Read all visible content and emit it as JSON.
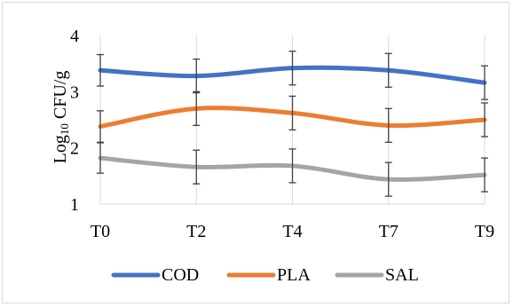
{
  "chart_data": {
    "type": "line",
    "title": "",
    "ylabel_main": "Log",
    "ylabel_sub": "10",
    "ylabel_rest": " CFU/g",
    "xlabel": "",
    "categories": [
      "T0",
      "T2",
      "T4",
      "T7",
      "T9"
    ],
    "ylim": [
      1,
      4
    ],
    "yticks": [
      "1",
      "2",
      "3",
      "4"
    ],
    "grid": "vertical",
    "legend_position": "bottom",
    "smooth": true,
    "series": [
      {
        "name": "COD",
        "color": "#4472c4",
        "values": [
          3.38,
          3.28,
          3.42,
          3.38,
          3.16
        ],
        "errors": [
          0.28,
          0.3,
          0.3,
          0.3,
          0.3
        ]
      },
      {
        "name": "PLA",
        "color": "#ed7d31",
        "values": [
          2.38,
          2.7,
          2.62,
          2.4,
          2.5
        ],
        "errors": [
          0.28,
          0.3,
          0.3,
          0.3,
          0.3
        ]
      },
      {
        "name": "SAL",
        "color": "#a5a5a5",
        "values": [
          1.82,
          1.66,
          1.68,
          1.44,
          1.52
        ],
        "errors": [
          0.27,
          0.3,
          0.3,
          0.3,
          0.3
        ]
      }
    ]
  }
}
